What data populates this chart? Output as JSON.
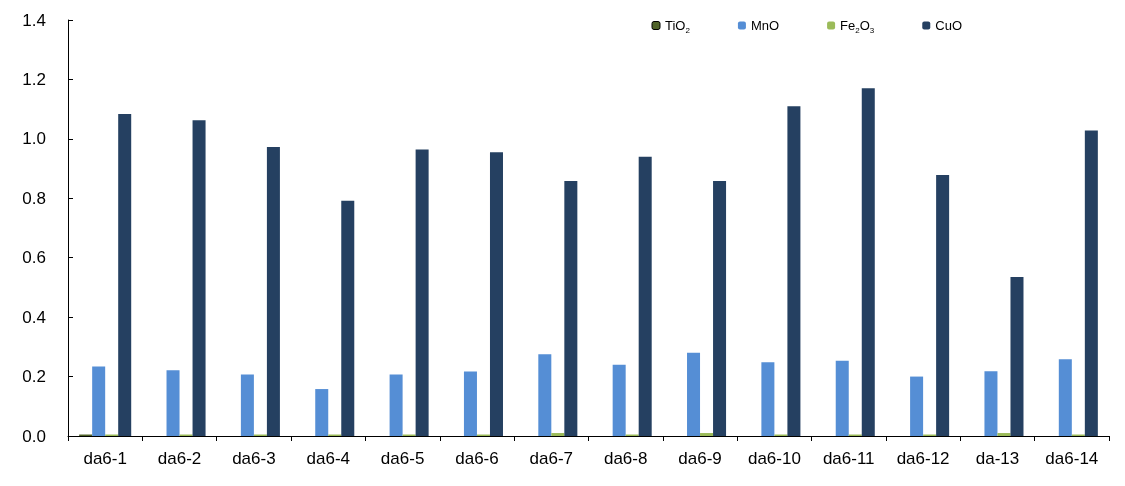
{
  "chart_data": {
    "type": "bar",
    "categories": [
      "da6-1",
      "da6-2",
      "da6-3",
      "da6-4",
      "da6-5",
      "da6-6",
      "da6-7",
      "da6-8",
      "da6-9",
      "da6-10",
      "da6-11",
      "da6-12",
      "da-13",
      "da6-14"
    ],
    "series": [
      {
        "name": "TiO$_{2}$",
        "color": "#4f6228",
        "values": [
          0.005,
          0,
          0,
          0,
          0,
          0,
          0,
          0,
          0,
          0,
          0,
          0,
          0,
          0
        ]
      },
      {
        "name": "MnO",
        "color": "#558ed5",
        "values": [
          0.234,
          0.221,
          0.207,
          0.158,
          0.207,
          0.217,
          0.275,
          0.24,
          0.28,
          0.248,
          0.253,
          0.2,
          0.218,
          0.258
        ]
      },
      {
        "name": "Fe$_{2}$O$_{3}$",
        "color": "#9bbb59",
        "values": [
          0.005,
          0.005,
          0.005,
          0.005,
          0.005,
          0.005,
          0.01,
          0.005,
          0.01,
          0.005,
          0.005,
          0.005,
          0.01,
          0.005
        ]
      },
      {
        "name": "CuO",
        "color": "#254061",
        "values": [
          1.084,
          1.063,
          0.973,
          0.792,
          0.964,
          0.955,
          0.858,
          0.94,
          0.858,
          1.11,
          1.17,
          0.878,
          0.535,
          1.028
        ]
      }
    ],
    "ylim": [
      0,
      1.4
    ],
    "yticks": [
      {
        "value": 0,
        "label": "0.0"
      },
      0.2,
      0.4,
      0.6,
      0.8,
      {
        "value": 1,
        "label": "1.0"
      },
      1.2,
      1.4
    ],
    "grid": false,
    "legend": "top right"
  }
}
